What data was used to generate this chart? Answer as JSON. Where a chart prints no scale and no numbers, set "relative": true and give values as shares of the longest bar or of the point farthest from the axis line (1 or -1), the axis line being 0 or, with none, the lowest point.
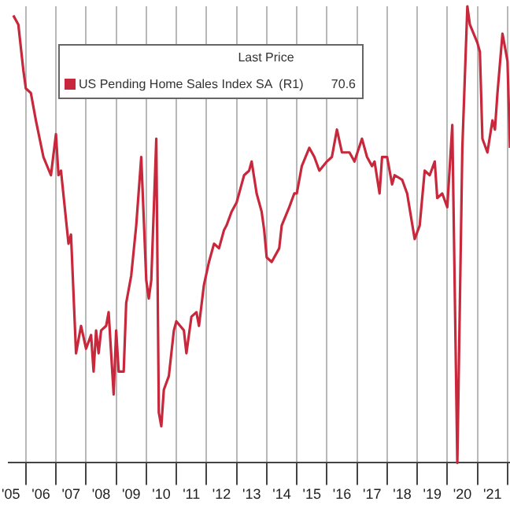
{
  "chart_data": {
    "type": "line",
    "relative": true,
    "grid": "x",
    "legend": "top left",
    "marker": "none",
    "line_style": "solid",
    "annotations": [
      "Last Price",
      "70.6"
    ],
    "xlim": [
      "2005-06",
      "2022-02"
    ],
    "xticks": [
      {
        "value": "2005-07",
        "label": "'05"
      },
      {
        "value": "2006-01",
        "label": null
      },
      {
        "value": "2006-07",
        "label": "'06"
      },
      {
        "value": "2007-01",
        "label": null
      },
      {
        "value": "2007-07",
        "label": "'07"
      },
      {
        "value": "2008-01",
        "label": null
      },
      {
        "value": "2008-07",
        "label": "'08"
      },
      {
        "value": "2009-01",
        "label": null
      },
      {
        "value": "2009-07",
        "label": "'09"
      },
      {
        "value": "2010-01",
        "label": null
      },
      {
        "value": "2010-07",
        "label": "'10"
      },
      {
        "value": "2011-01",
        "label": null
      },
      {
        "value": "2011-07",
        "label": "'11"
      },
      {
        "value": "2012-01",
        "label": null
      },
      {
        "value": "2012-07",
        "label": "'12"
      },
      {
        "value": "2013-01",
        "label": null
      },
      {
        "value": "2013-07",
        "label": "'13"
      },
      {
        "value": "2014-01",
        "label": null
      },
      {
        "value": "2014-07",
        "label": "'14"
      },
      {
        "value": "2015-01",
        "label": null
      },
      {
        "value": "2015-07",
        "label": "'15"
      },
      {
        "value": "2016-01",
        "label": null
      },
      {
        "value": "2016-07",
        "label": "'16"
      },
      {
        "value": "2017-01",
        "label": null
      },
      {
        "value": "2017-07",
        "label": "'17"
      },
      {
        "value": "2018-01",
        "label": null
      },
      {
        "value": "2018-07",
        "label": "'18"
      },
      {
        "value": "2019-01",
        "label": null
      },
      {
        "value": "2019-07",
        "label": "'19"
      },
      {
        "value": "2020-01",
        "label": null
      },
      {
        "value": "2020-07",
        "label": "'20"
      },
      {
        "value": "2021-01",
        "label": null
      },
      {
        "value": "2021-07",
        "label": "'21"
      },
      {
        "value": "2022-01",
        "label": null
      }
    ],
    "series": [
      {
        "name": "US Pending Home Sales Index SA  (R1)",
        "color": "#c8283c",
        "x": [
          "2005-08",
          "2005-10",
          "2005-12",
          "2006-01",
          "2006-03",
          "2006-05",
          "2006-08",
          "2006-11",
          "2007-01",
          "2007-02",
          "2007-03",
          "2007-06",
          "2007-07",
          "2007-09",
          "2007-11",
          "2008-01",
          "2008-03",
          "2008-04",
          "2008-05",
          "2008-06",
          "2008-07",
          "2008-09",
          "2008-10",
          "2008-12",
          "2009-01",
          "2009-02",
          "2009-04",
          "2009-05",
          "2009-07",
          "2009-09",
          "2009-11",
          "2010-01",
          "2010-02",
          "2010-03",
          "2010-05",
          "2010-06",
          "2010-07",
          "2010-08",
          "2010-10",
          "2010-12",
          "2011-01",
          "2011-04",
          "2011-05",
          "2011-07",
          "2011-09",
          "2011-10",
          "2011-12",
          "2012-02",
          "2012-04",
          "2012-06",
          "2012-08",
          "2012-09",
          "2012-11",
          "2013-01",
          "2013-03",
          "2013-04",
          "2013-06",
          "2013-07",
          "2013-09",
          "2013-11",
          "2013-12",
          "2014-01",
          "2014-03",
          "2014-06",
          "2014-07",
          "2014-10",
          "2014-12",
          "2015-01",
          "2015-03",
          "2015-06",
          "2015-08",
          "2015-10",
          "2016-01",
          "2016-03",
          "2016-05",
          "2016-07",
          "2016-10",
          "2016-12",
          "2017-03",
          "2017-05",
          "2017-07",
          "2017-08",
          "2017-10",
          "2017-11",
          "2018-01",
          "2018-03",
          "2018-04",
          "2018-07",
          "2018-09",
          "2018-12",
          "2019-02",
          "2019-04",
          "2019-06",
          "2019-08",
          "2019-09",
          "2019-11",
          "2020-01",
          "2020-03",
          "2020-05",
          "2020-07",
          "2020-09",
          "2020-10",
          "2021-01",
          "2021-02",
          "2021-03",
          "2021-05",
          "2021-07",
          "2021-08",
          "2021-09",
          "2021-11",
          "2022-01",
          "2022-02"
        ],
        "values": [
          0.98,
          0.96,
          0.86,
          0.82,
          0.81,
          0.75,
          0.67,
          0.63,
          0.72,
          0.63,
          0.64,
          0.48,
          0.5,
          0.24,
          0.3,
          0.25,
          0.28,
          0.2,
          0.29,
          0.24,
          0.29,
          0.3,
          0.33,
          0.15,
          0.29,
          0.2,
          0.2,
          0.35,
          0.41,
          0.52,
          0.67,
          0.4,
          0.36,
          0.4,
          0.71,
          0.11,
          0.08,
          0.16,
          0.19,
          0.29,
          0.31,
          0.29,
          0.24,
          0.32,
          0.33,
          0.3,
          0.39,
          0.44,
          0.48,
          0.47,
          0.51,
          0.52,
          0.55,
          0.57,
          0.61,
          0.63,
          0.64,
          0.66,
          0.59,
          0.55,
          0.51,
          0.45,
          0.44,
          0.47,
          0.52,
          0.56,
          0.59,
          0.59,
          0.65,
          0.69,
          0.67,
          0.64,
          0.66,
          0.67,
          0.73,
          0.68,
          0.68,
          0.66,
          0.71,
          0.67,
          0.65,
          0.66,
          0.59,
          0.67,
          0.67,
          0.61,
          0.63,
          0.62,
          0.59,
          0.49,
          0.52,
          0.64,
          0.63,
          0.66,
          0.58,
          0.59,
          0.56,
          0.74,
          0,
          0.69,
          1,
          0.96,
          0.92,
          0.9,
          0.71,
          0.68,
          0.75,
          0.73,
          0.81,
          0.94,
          0.88,
          0.69
        ]
      }
    ]
  }
}
